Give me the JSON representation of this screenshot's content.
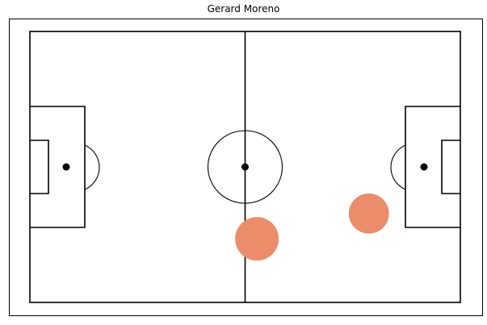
{
  "chart_data": {
    "type": "scatter",
    "title": "Gerard Moreno",
    "xlabel": "",
    "ylabel": "",
    "xlim": [
      0,
      120
    ],
    "ylim": [
      0,
      75
    ],
    "grid": false,
    "background": "pitch",
    "colors": {
      "line": "#000000",
      "marker": "#eb8d6a",
      "spot": "#000000"
    },
    "series": [
      {
        "values": [
          {
            "x": 63.3,
            "y": 17.6,
            "size": 1.0
          },
          {
            "x": 94.5,
            "y": 24.6,
            "size": 0.85
          }
        ]
      }
    ]
  }
}
